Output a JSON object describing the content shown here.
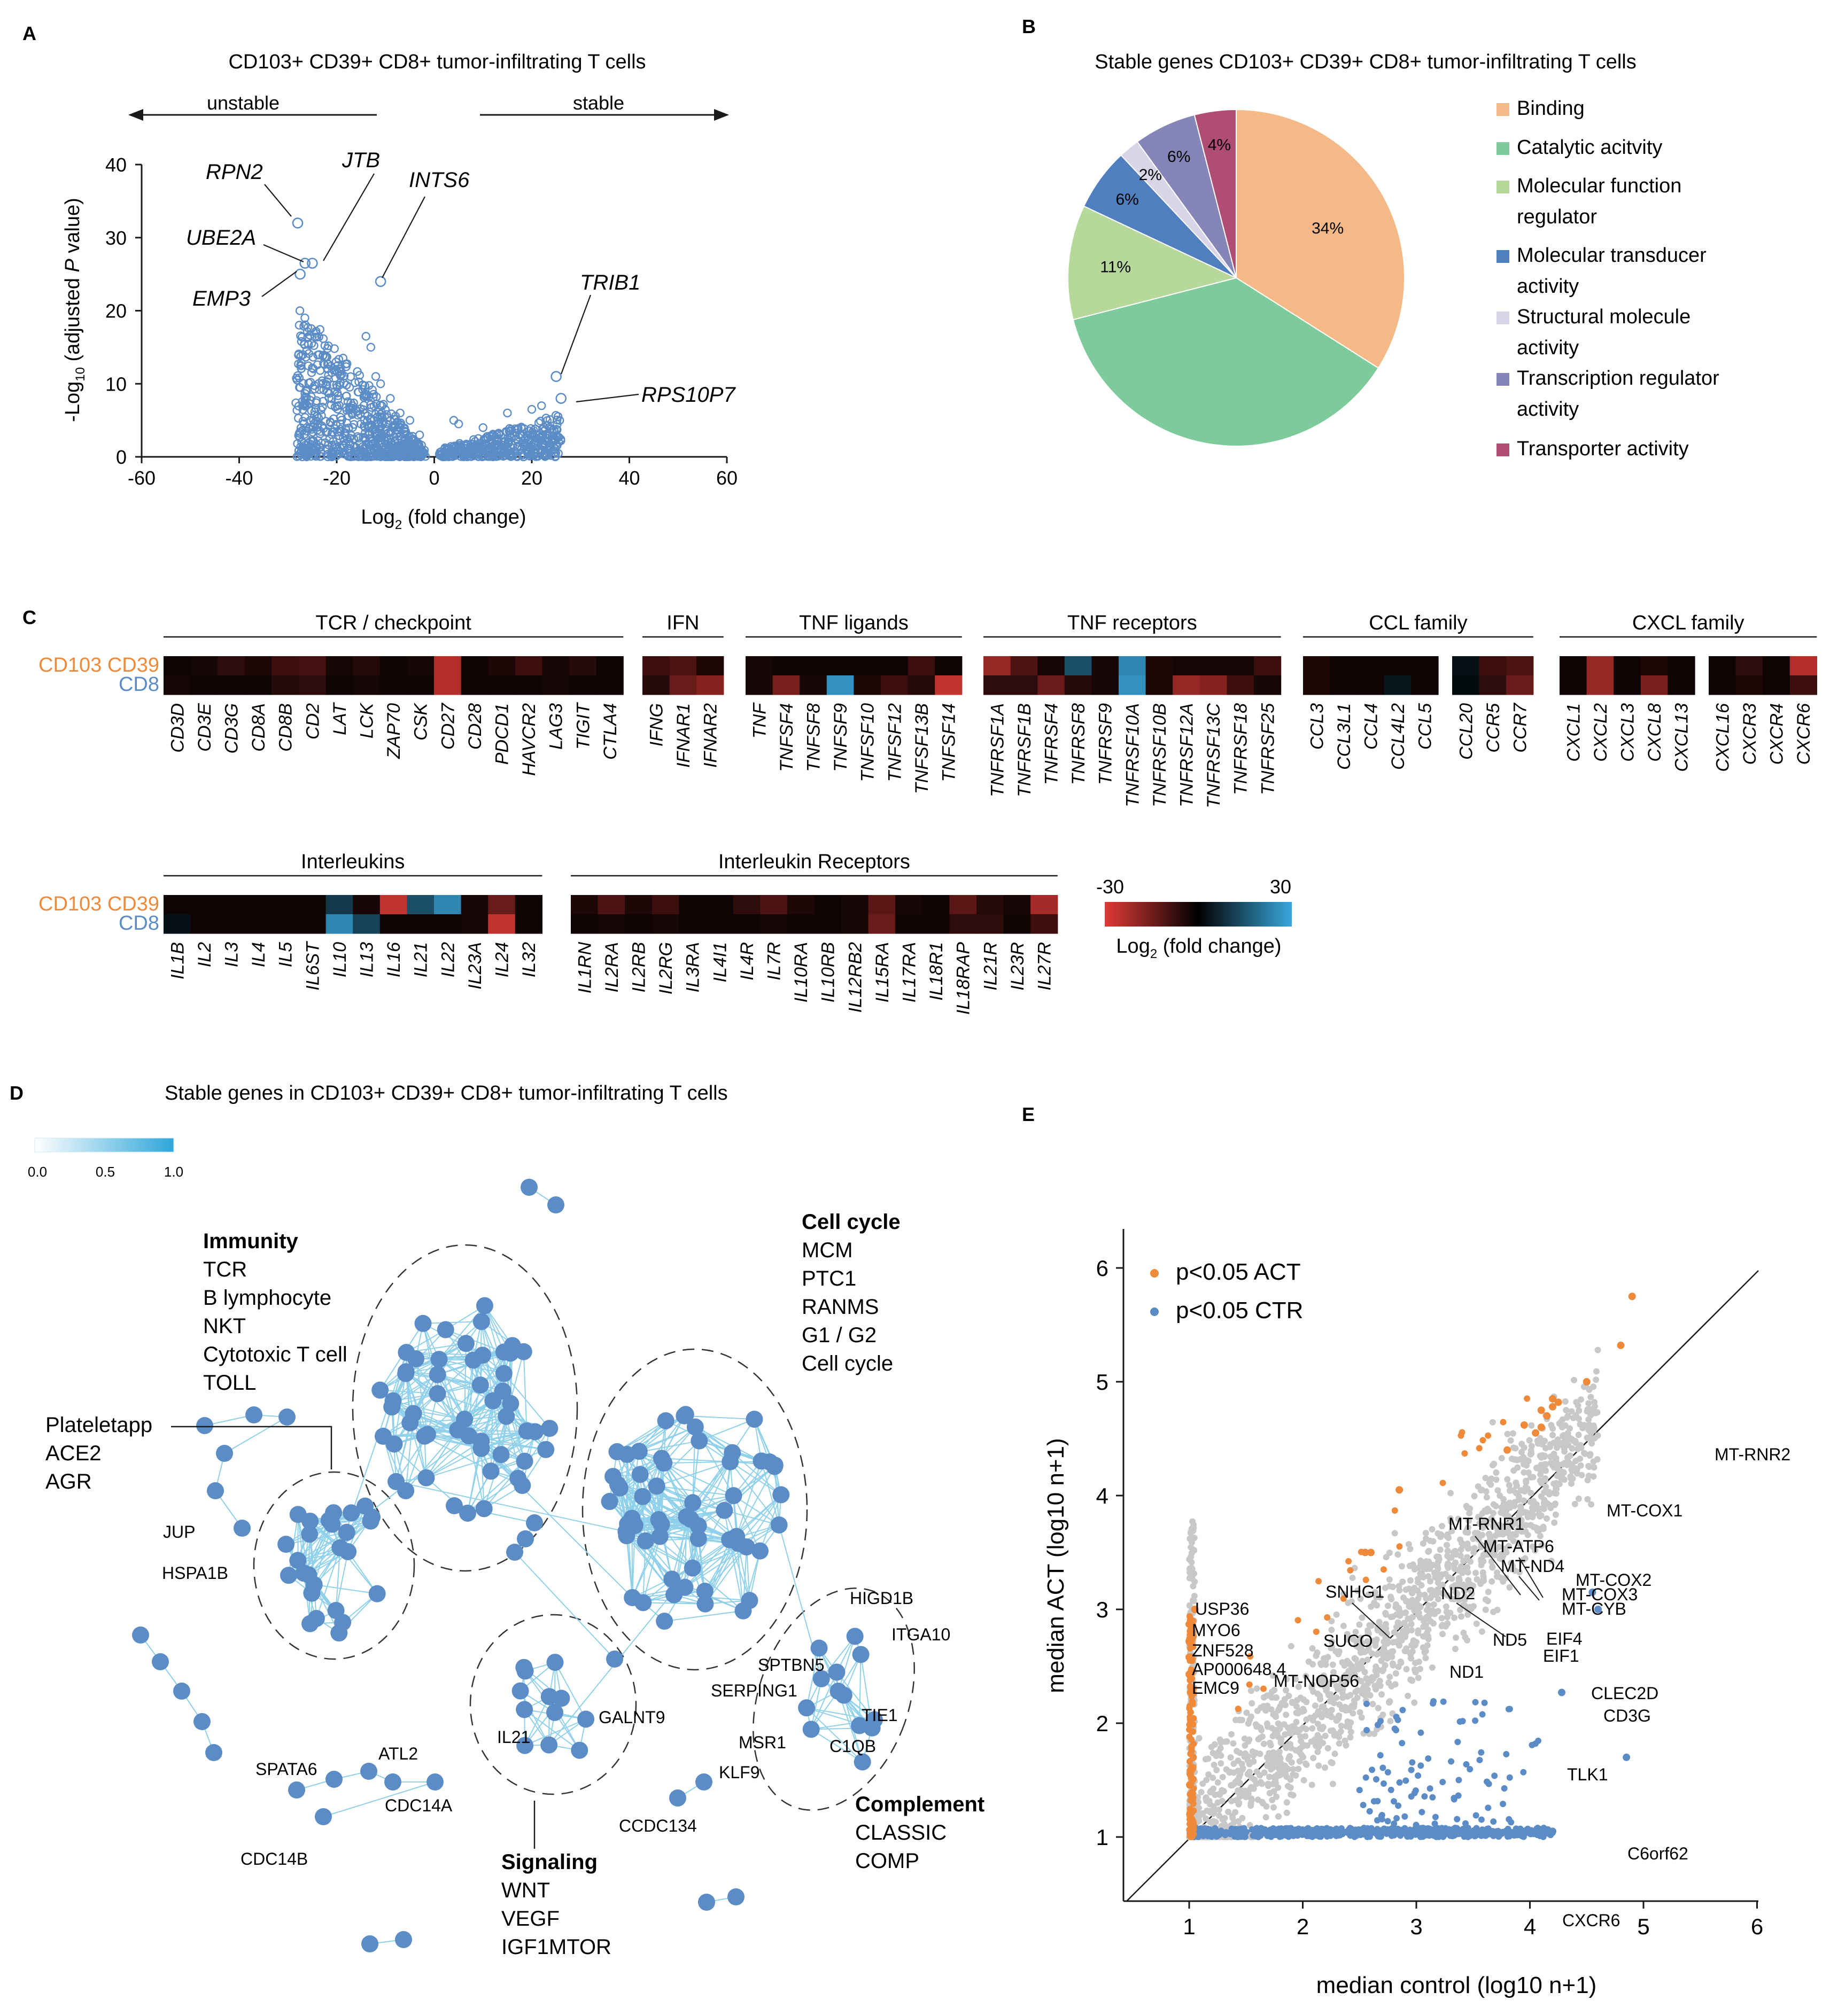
{
  "panels": {
    "A": {
      "label": "A",
      "title": "CD103+ CD39+ CD8+ tumor-infiltrating T cells"
    },
    "B": {
      "label": "B",
      "title": "Stable genes CD103+ CD39+ CD8+ tumor-infiltrating T cells"
    },
    "C": {
      "label": "C"
    },
    "D": {
      "label": "D",
      "title": "Stable genes in CD103+ CD39+ CD8+ tumor-infiltrating T cells"
    },
    "E": {
      "label": "E"
    }
  },
  "colors": {
    "blue": "#5b8cc6",
    "orange": "#ef8a3a",
    "grey": "#c8c8c8",
    "edge": "#8fd0ea",
    "heat_neg": "#e03a36",
    "heat_pos": "#3aa7dd"
  },
  "chart_data": [
    {
      "id": "A",
      "type": "scatter",
      "title": "CD103+ CD39+ CD8+ tumor-infiltrating T cells",
      "xlabel": "Log2 (fold change)",
      "xlabel_main": "Log",
      "xlabel_sub": "2",
      "xlabel_rest": " (fold change)",
      "ylabel": "-Log10 (adjusted P value)",
      "ylabel_parts": {
        "a": "-Log",
        "sub": "10",
        "b": " (adjusted ",
        "italic": "P",
        "c": " value)"
      },
      "xlim": [
        -60,
        60
      ],
      "ylim": [
        0,
        40
      ],
      "xticks": [
        -60,
        -40,
        -20,
        0,
        20,
        40,
        60
      ],
      "yticks": [
        0,
        10,
        20,
        30,
        40
      ],
      "arrow_left": "unstable",
      "arrow_right": "stable",
      "highlight_points": [
        {
          "name": "RPN2",
          "x": -28,
          "y": 32
        },
        {
          "name": "JTB",
          "x": -25,
          "y": 26.5
        },
        {
          "name": "UBE2A",
          "x": -26.5,
          "y": 26.5
        },
        {
          "name": "EMP3",
          "x": -27.5,
          "y": 25
        },
        {
          "name": "INTS6",
          "x": -11,
          "y": 24
        },
        {
          "name": "TRIB1",
          "x": 25,
          "y": 11
        },
        {
          "name": "RPS10P7",
          "x": 26,
          "y": 8
        }
      ]
    },
    {
      "id": "B",
      "type": "pie",
      "title": "Stable genes CD103+ CD39+ CD8+ tumor-infiltrating T cells",
      "slices": [
        {
          "label": "Binding",
          "value": 34,
          "text": "34%",
          "color": "#f5b887"
        },
        {
          "label": "Catalytic acitvity",
          "value": 37,
          "text": "",
          "color": "#7dcb9b"
        },
        {
          "label": "Molecular function regulator",
          "value": 11,
          "text": "11%",
          "color": "#b6d99b"
        },
        {
          "label": "Molecular transducer activity",
          "value": 6,
          "text": "6%",
          "color": "#4f7fbe"
        },
        {
          "label": "Structural molecule activity",
          "value": 2,
          "text": "2%",
          "color": "#d9d5e8"
        },
        {
          "label": "Transcription regulator activity",
          "value": 6,
          "text": "6%",
          "color": "#8585b8"
        },
        {
          "label": "Transporter activity",
          "value": 4,
          "text": "4%",
          "color": "#b04d74"
        }
      ],
      "legend": [
        {
          "line1": "Binding",
          "line2": "",
          "color": "#f5b887"
        },
        {
          "line1": "Catalytic acitvity",
          "line2": "",
          "color": "#7dcb9b"
        },
        {
          "line1": "Molecular function",
          "line2": "regulator",
          "color": "#b6d99b"
        },
        {
          "line1": "Molecular transducer",
          "line2": "activity",
          "color": "#4f7fbe"
        },
        {
          "line1": "Structural molecule",
          "line2": "activity",
          "color": "#d9d5e8"
        },
        {
          "line1": "Transcription regulator",
          "line2": "activity",
          "color": "#8585b8"
        },
        {
          "line1": "Transporter activity",
          "line2": "",
          "color": "#b04d74"
        }
      ]
    },
    {
      "id": "C",
      "type": "heatmap",
      "rows": [
        "CD103 CD39",
        "CD8"
      ],
      "row_colors": [
        "#ef8a3a",
        "#5b8cc6"
      ],
      "scale": {
        "min": -30,
        "max": 30,
        "min_label": "-30",
        "max_label": "30",
        "label": "Log2 (fold change)",
        "label_main": "Log",
        "label_sub": "2",
        "label_rest": " (fold change)"
      },
      "groups": [
        {
          "name": "TCR / checkpoint",
          "genes": [
            "CD3D",
            "CD3E",
            "CD3G",
            "CD8A",
            "CD8B",
            "CD2",
            "LAT",
            "LCK",
            "ZAP70",
            "CSK",
            "CD27",
            "CD28",
            "PDCD1",
            "HAVCR2",
            "LAG3",
            "TIGIT",
            "CTLA4"
          ],
          "values": [
            [
              -2,
              -3,
              -6,
              -4,
              -8,
              -9,
              -3,
              -5,
              -2,
              -3,
              -24,
              -2,
              -4,
              -8,
              -3,
              -5,
              -2
            ],
            [
              -3,
              -2,
              -2,
              -2,
              -5,
              -6,
              -2,
              -3,
              -2,
              -2,
              -24,
              -2,
              -2,
              -2,
              -3,
              -2,
              -2
            ]
          ]
        },
        {
          "name": "IFN",
          "genes": [
            "IFNG",
            "IFNAR1",
            "IFNAR2"
          ],
          "values": [
            [
              -8,
              -10,
              -4
            ],
            [
              -5,
              -14,
              -18
            ]
          ]
        },
        {
          "name": "TNF ligands",
          "genes": [
            "TNF",
            "TNFSF4",
            "TNFSF8",
            "TNFSF9",
            "TNFSF10",
            "TNFSF12",
            "TNFSF13B",
            "TNFSF14"
          ],
          "values": [
            [
              -3,
              -2,
              -2,
              -2,
              -2,
              -2,
              -8,
              -2
            ],
            [
              -3,
              -16,
              -3,
              26,
              -4,
              -8,
              -5,
              -26
            ]
          ]
        },
        {
          "name": "TNF receptors",
          "genes": [
            "TNFRSF1A",
            "TNFRSF1B",
            "TNFRSF4",
            "TNFRSF8",
            "TNFRSF9",
            "TNFRSF10A",
            "TNFRSF10B",
            "TNFRSF12A",
            "TNFRSF13C",
            "TNFRSF18",
            "TNFRSF25"
          ],
          "values": [
            [
              -20,
              -10,
              -3,
              14,
              -3,
              24,
              -4,
              -3,
              -3,
              -3,
              -8
            ],
            [
              -6,
              -6,
              -14,
              -5,
              -3,
              26,
              -4,
              -20,
              -18,
              -8,
              -3
            ]
          ]
        },
        {
          "name": "CCL family",
          "genes": [
            "CCL3",
            "CCL3L1",
            "CCL4",
            "CCL4L2",
            "CCL5",
            "CCL20",
            "CCR5",
            "CCR7"
          ],
          "sub_gap_after": 5,
          "values": [
            [
              -4,
              -2,
              -2,
              -2,
              -2,
              3,
              -8,
              -10
            ],
            [
              -4,
              -2,
              -2,
              4,
              -2,
              2,
              -6,
              -14
            ]
          ]
        },
        {
          "name": "CXCL family",
          "genes": [
            "CXCL1",
            "CXCL2",
            "CXCL3",
            "CXCL8",
            "CXCL13",
            "CXCL16",
            "CXCR3",
            "CXCR4",
            "CXCR6"
          ],
          "sub_gap_after": 5,
          "values": [
            [
              -2,
              -20,
              -2,
              -4,
              -2,
              -2,
              -6,
              -2,
              -24
            ],
            [
              -2,
              -20,
              -2,
              -16,
              -2,
              -2,
              -4,
              -2,
              -8
            ]
          ]
        },
        {
          "name": "Interleukins",
          "genes": [
            "IL1B",
            "IL2",
            "IL3",
            "IL4",
            "IL5",
            "IL6ST",
            "IL10",
            "IL13",
            "IL16",
            "IL21",
            "IL22",
            "IL23A",
            "IL24",
            "IL32"
          ],
          "values": [
            [
              -2,
              -2,
              -2,
              -2,
              -2,
              -2,
              10,
              -3,
              -26,
              14,
              24,
              -3,
              -14,
              -2
            ],
            [
              3,
              -2,
              -2,
              -2,
              -2,
              -2,
              24,
              12,
              -2,
              -2,
              -2,
              -3,
              -26,
              -2
            ]
          ]
        },
        {
          "name": "Interleukin Receptors",
          "genes": [
            "IL1RN",
            "IL2RA",
            "IL2RB",
            "IL2RG",
            "IL3RA",
            "IL4I1",
            "IL4R",
            "IL7R",
            "IL10RA",
            "IL10RB",
            "IL12RB2",
            "IL15RA",
            "IL17RA",
            "IL18R1",
            "IL18RAP",
            "IL21R",
            "IL23R",
            "IL27R"
          ],
          "values": [
            [
              -4,
              -10,
              -4,
              -8,
              -2,
              -2,
              -6,
              -10,
              -4,
              -2,
              -3,
              -12,
              -3,
              -2,
              -12,
              -5,
              -3,
              -22
            ],
            [
              -2,
              -3,
              -2,
              -3,
              -2,
              -2,
              -2,
              -3,
              -2,
              -2,
              -3,
              -14,
              -2,
              -2,
              -6,
              -6,
              -2,
              -8
            ]
          ]
        }
      ]
    },
    {
      "id": "D",
      "type": "network",
      "title": "Stable genes in CD103+ CD39+ CD8+ tumor-infiltrating T cells",
      "colorbar": {
        "min": "0.0",
        "mid": "0.5",
        "max": "1.0"
      },
      "clusters": [
        {
          "heading": "Immunity",
          "items": [
            "TCR",
            "B lymphocyte",
            "NKT",
            "Cytotoxic T cell",
            "TOLL"
          ]
        },
        {
          "heading": "Cell cycle",
          "items": [
            "MCM",
            "PTC1",
            "RANMS",
            "G1 / G2",
            "Cell cycle"
          ]
        },
        {
          "heading": "",
          "items": [
            "Plateletapp",
            "ACE2",
            "AGR"
          ]
        },
        {
          "heading": "Signaling",
          "items": [
            "WNT",
            "VEGF",
            "IGF1MTOR"
          ]
        },
        {
          "heading": "Complement",
          "items": [
            "CLASSIC",
            "COMP"
          ]
        }
      ],
      "node_labels": [
        "JUP",
        "HSPA1B",
        "HIGD1B",
        "ITGA10",
        "SPTBN5",
        "SERPING1",
        "TIE1",
        "MSR1",
        "C1QB",
        "KLF9",
        "CCDC134",
        "GALNT9",
        "IL21",
        "SPATA6",
        "ATL2",
        "CDC14A",
        "CDC14B"
      ]
    },
    {
      "id": "E",
      "type": "scatter",
      "xlabel": "median control (log10 n+1)",
      "ylabel": "median ACT (log10 n+1)",
      "xlim": [
        0.5,
        6
      ],
      "ylim": [
        0.5,
        6.2
      ],
      "xticks": [
        1,
        2,
        3,
        4,
        5,
        6
      ],
      "yticks": [
        1,
        2,
        3,
        4,
        5,
        6
      ],
      "legend": [
        {
          "label": "p<0.05 ACT",
          "color": "#ef8a3a"
        },
        {
          "label": "p<0.05 CTR",
          "color": "#5b8cc6"
        }
      ],
      "labeled_points": [
        {
          "name": "MT-RNR2",
          "x": 4.9,
          "y": 5.75,
          "group": "ACT"
        },
        {
          "name": "MT-COX1",
          "x": 4.8,
          "y": 5.32,
          "group": "ACT"
        },
        {
          "name": "MT-RNR1",
          "x": 4.1,
          "y": 4.75,
          "group": "ACT"
        },
        {
          "name": "MT-ATP6",
          "x": 4.15,
          "y": 4.7,
          "group": "ACT"
        },
        {
          "name": "MT-ND4",
          "x": 4.2,
          "y": 4.78,
          "group": "ACT"
        },
        {
          "name": "MT-COX2",
          "x": 4.5,
          "y": 5.0,
          "group": "ACT"
        },
        {
          "name": "MT-COX3",
          "x": 4.2,
          "y": 4.85,
          "group": "ACT"
        },
        {
          "name": "MT-CYB",
          "x": 4.25,
          "y": 4.82,
          "group": "ACT"
        },
        {
          "name": "ND2",
          "x": 3.95,
          "y": 4.62,
          "group": "ACT"
        },
        {
          "name": "ND5",
          "x": 4.05,
          "y": 4.55,
          "group": "ACT"
        },
        {
          "name": "EIF4",
          "x": 4.1,
          "y": 4.6,
          "group": "ACT"
        },
        {
          "name": "EIF1",
          "x": 4.1,
          "y": 4.6,
          "group": "ACT"
        },
        {
          "name": "ND1",
          "x": 3.8,
          "y": 4.4,
          "group": "ACT"
        },
        {
          "name": "SNHG1",
          "x": 2.85,
          "y": 4.05,
          "group": "ACT"
        },
        {
          "name": "SUCO",
          "x": 2.6,
          "y": 3.5,
          "group": "ACT"
        },
        {
          "name": "MT-NOP56",
          "x": 2.55,
          "y": 3.5,
          "group": "ACT"
        },
        {
          "name": "USP36",
          "x": 1.05,
          "y": 3.0,
          "group": "ACT"
        },
        {
          "name": "MYO6",
          "x": 1.0,
          "y": 2.87,
          "group": "ACT"
        },
        {
          "name": "ZNF528",
          "x": 1.0,
          "y": 2.72,
          "group": "ACT"
        },
        {
          "name": "AP000648.4",
          "x": 1.0,
          "y": 2.58,
          "group": "ACT"
        },
        {
          "name": "EMC9",
          "x": 1.0,
          "y": 2.43,
          "group": "ACT"
        },
        {
          "name": "CLEC2D",
          "x": 4.55,
          "y": 3.15,
          "group": "CTR"
        },
        {
          "name": "CD3G",
          "x": 4.6,
          "y": 3.0,
          "group": "CTR"
        },
        {
          "name": "TLK1",
          "x": 4.28,
          "y": 2.27,
          "group": "CTR"
        },
        {
          "name": "C6orf62",
          "x": 4.85,
          "y": 1.7,
          "group": "CTR"
        },
        {
          "name": "CXCR6",
          "x": 4.2,
          "y": 1.05,
          "group": "CTR"
        }
      ]
    }
  ]
}
